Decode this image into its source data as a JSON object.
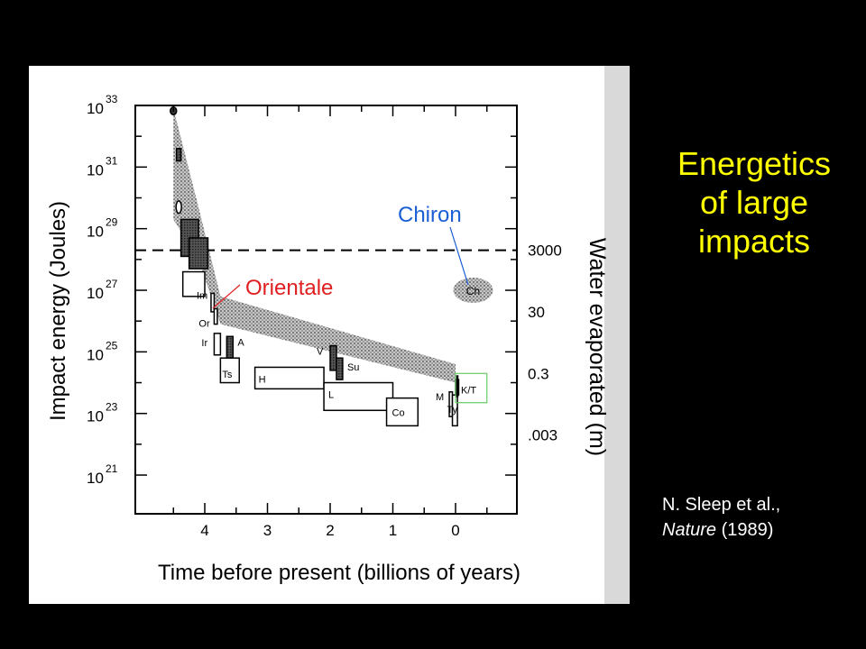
{
  "slide": {
    "title_lines": [
      "Energetics",
      "of large",
      "impacts"
    ],
    "citation": {
      "authors": "N. Sleep et al.,",
      "journal": "Nature",
      "year": "(1989)"
    }
  },
  "colors": {
    "background": "#000000",
    "title": "#ffff00",
    "citation": "#ffffff",
    "chiron": "#1a5fd6",
    "orientale": "#e02020",
    "kt_box": "#66cc66"
  },
  "chart_data": {
    "type": "scatter",
    "xlabel": "Time before present (billions of years)",
    "ylabel": "Impact energy (Joules)",
    "y2label": "Water evaporated (m)",
    "x_reversed": true,
    "xlim": [
      4.95,
      -1.0
    ],
    "x_ticks": [
      "4",
      "3",
      "2",
      "1",
      "0"
    ],
    "y_scale": "log",
    "y_ticks": [
      {
        "base": "10",
        "exp": "33"
      },
      {
        "base": "10",
        "exp": "31"
      },
      {
        "base": "10",
        "exp": "29"
      },
      {
        "base": "10",
        "exp": "27"
      },
      {
        "base": "10",
        "exp": "25"
      },
      {
        "base": "10",
        "exp": "23"
      },
      {
        "base": "10",
        "exp": "21"
      }
    ],
    "y2_ticks": [
      {
        "label": "3000",
        "logE": 28.3
      },
      {
        "label": "30",
        "logE": 26.3
      },
      {
        "label": "0.3",
        "logE": 24.3
      },
      {
        "label": ".003",
        "logE": 22.3
      }
    ],
    "threshold_logE": 28.3,
    "flux_band": [
      {
        "t": 4.5,
        "lo": 29.3,
        "hi": 32.9
      },
      {
        "t": 4.1,
        "lo": 28.0,
        "hi": 29.7
      },
      {
        "t": 3.75,
        "lo": 25.9,
        "hi": 26.8
      },
      {
        "t": 0.0,
        "lo": 24.0,
        "hi": 24.6
      }
    ],
    "basins": [
      {
        "label": "",
        "t0": 4.55,
        "t1": 4.45,
        "lo": 32.7,
        "hi": 32.95,
        "fill": "dark",
        "shape": "ellipse"
      },
      {
        "label": "",
        "t0": 4.45,
        "t1": 4.38,
        "lo": 31.2,
        "hi": 31.6,
        "fill": "dark"
      },
      {
        "label": "",
        "t0": 4.45,
        "t1": 4.38,
        "lo": 29.5,
        "hi": 29.9,
        "fill": "none",
        "shape": "ellipse"
      },
      {
        "label": "",
        "t0": 4.38,
        "t1": 4.1,
        "lo": 28.1,
        "hi": 29.3,
        "fill": "dark"
      },
      {
        "label": "",
        "t0": 4.25,
        "t1": 3.95,
        "lo": 27.7,
        "hi": 28.7,
        "fill": "dark"
      },
      {
        "label": "",
        "t0": 4.35,
        "t1": 4.0,
        "lo": 26.8,
        "hi": 27.6,
        "fill": "none"
      },
      {
        "label": "Im",
        "t0": 3.9,
        "t1": 3.85,
        "lo": 26.3,
        "hi": 26.9,
        "fill": "none"
      },
      {
        "label": "Or",
        "t0": 3.85,
        "t1": 3.8,
        "lo": 25.9,
        "hi": 26.4,
        "fill": "none"
      },
      {
        "label": "Ir",
        "t0": 3.85,
        "t1": 3.75,
        "lo": 24.9,
        "hi": 25.6,
        "fill": "none"
      },
      {
        "label": "A",
        "t0": 3.65,
        "t1": 3.55,
        "lo": 24.8,
        "hi": 25.5,
        "fill": "dark"
      },
      {
        "label": "Ts",
        "t0": 3.75,
        "t1": 3.45,
        "lo": 24.0,
        "hi": 24.8,
        "fill": "none"
      },
      {
        "label": "H",
        "t0": 3.2,
        "t1": 2.1,
        "lo": 23.8,
        "hi": 24.5,
        "fill": "none"
      },
      {
        "label": "V",
        "t0": 2.0,
        "t1": 1.9,
        "lo": 24.4,
        "hi": 25.2,
        "fill": "dark"
      },
      {
        "label": "Su",
        "t0": 1.9,
        "t1": 1.8,
        "lo": 24.1,
        "hi": 24.8,
        "fill": "dark"
      },
      {
        "label": "L",
        "t0": 2.1,
        "t1": 1.0,
        "lo": 23.1,
        "hi": 24.0,
        "fill": "none"
      },
      {
        "label": "Co",
        "t0": 1.1,
        "t1": 0.6,
        "lo": 22.6,
        "hi": 23.5,
        "fill": "none"
      },
      {
        "label": "M",
        "t0": 0.1,
        "t1": 0.05,
        "lo": 22.9,
        "hi": 23.7,
        "fill": "none"
      },
      {
        "label": "Ty",
        "t0": 0.05,
        "t1": -0.03,
        "lo": 22.6,
        "hi": 23.6,
        "fill": "none"
      },
      {
        "label": "",
        "t0": 0.0,
        "t1": -0.05,
        "lo": 23.6,
        "hi": 24.1,
        "fill": "dark"
      }
    ],
    "kt": {
      "label": "K/T",
      "t0": 0.0,
      "t1": -0.5,
      "lo": 23.35,
      "hi": 24.3
    },
    "chiron": {
      "label": "Ch",
      "t": -0.28,
      "logE": 27.0
    },
    "callouts": [
      {
        "label": "Chiron",
        "color": "chiron"
      },
      {
        "label": "Orientale",
        "color": "orientale"
      }
    ]
  }
}
